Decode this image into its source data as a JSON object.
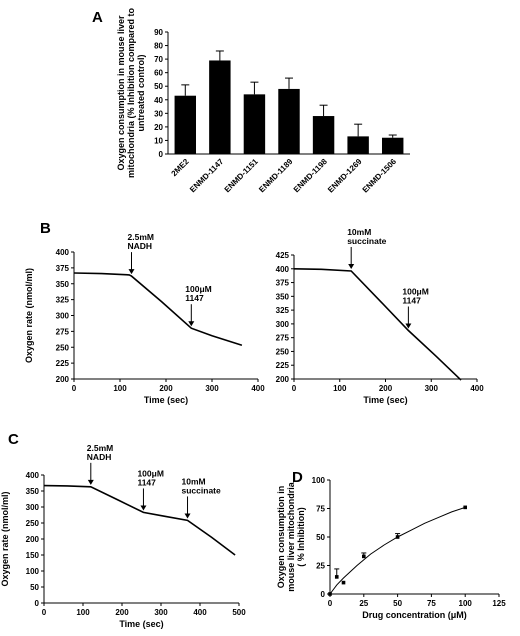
{
  "chart_data": [
    {
      "panel": "A",
      "type": "bar",
      "ylabel": "Oxygen consumption in mouse liver mitochondria (% Inhibition compared to untreated control)",
      "ylabel_lines": [
        "Oxygen consumption in mouse liver",
        "mitochondria (% Inhibition compared to",
        "untreated control)"
      ],
      "xlabel": "",
      "categories": [
        "2ME2",
        "ENMD-1147",
        "ENMD-1151",
        "ENMD-1189",
        "ENMD-1198",
        "ENMD-1269",
        "ENMD-1506"
      ],
      "values": [
        43,
        69,
        44,
        48,
        28,
        13,
        12
      ],
      "errors": [
        8,
        7,
        9,
        8,
        8,
        9,
        2
      ],
      "ylim": [
        0,
        90
      ],
      "yticks": [
        "0",
        "10",
        "20",
        "30",
        "40",
        "50",
        "60",
        "70",
        "80",
        "90"
      ],
      "grid": false,
      "color": "#000000"
    },
    {
      "panel": "B",
      "type": "line",
      "ylabel": "Oxygen rate (nmol/ml)",
      "xlabel": "Time (sec)",
      "xlim": [
        0,
        400
      ],
      "ylim": [
        200,
        400
      ],
      "xticks": [
        "0",
        "100",
        "200",
        "300",
        "400"
      ],
      "yticks": [
        "200",
        "225",
        "250",
        "275",
        "300",
        "325",
        "350",
        "375",
        "400"
      ],
      "x": [
        0,
        60,
        120,
        125,
        190,
        255,
        300,
        365
      ],
      "y": [
        367,
        366,
        364,
        362,
        322,
        280,
        268,
        253
      ],
      "annotations": [
        {
          "lines": [
            "2.5mM",
            "NADH"
          ],
          "x": 125,
          "y": 362
        },
        {
          "lines": [
            "100μM",
            "1147"
          ],
          "x": 255,
          "y": 280
        }
      ],
      "grid": false
    },
    {
      "panel": "B",
      "type": "line",
      "ylabel": "",
      "xlabel": "Time (sec)",
      "xlim": [
        0,
        400
      ],
      "ylim": [
        200,
        425
      ],
      "xticks": [
        "0",
        "100",
        "200",
        "300",
        "400"
      ],
      "yticks": [
        "200",
        "225",
        "250",
        "275",
        "300",
        "325",
        "350",
        "375",
        "400",
        "425"
      ],
      "x": [
        0,
        60,
        125,
        190,
        250,
        310,
        365
      ],
      "y": [
        400,
        399,
        396,
        340,
        288,
        242,
        198
      ],
      "annotations": [
        {
          "lines": [
            "10mM",
            "succinate"
          ],
          "x": 125,
          "y": 396
        },
        {
          "lines": [
            "100μM",
            "1147"
          ],
          "x": 250,
          "y": 288
        }
      ],
      "grid": false
    },
    {
      "panel": "C",
      "type": "line",
      "ylabel": "Oxygen rate (nmol/ml)",
      "xlabel": "Time (sec)",
      "xlim": [
        0,
        500
      ],
      "ylim": [
        0,
        400
      ],
      "xticks": [
        "0",
        "100",
        "200",
        "300",
        "400",
        "500"
      ],
      "yticks": [
        "0",
        "50",
        "100",
        "150",
        "200",
        "250",
        "300",
        "350",
        "400"
      ],
      "x": [
        0,
        60,
        120,
        190,
        255,
        310,
        368,
        430,
        490
      ],
      "y": [
        367,
        366,
        363,
        322,
        283,
        271,
        258,
        205,
        150
      ],
      "annotations": [
        {
          "lines": [
            "2.5mM",
            "NADH"
          ],
          "x": 120,
          "y": 363
        },
        {
          "lines": [
            "100μM",
            "1147"
          ],
          "x": 255,
          "y": 283
        },
        {
          "lines": [
            "10mM",
            "succinate"
          ],
          "x": 368,
          "y": 258
        }
      ],
      "grid": false
    },
    {
      "panel": "D",
      "type": "scatter",
      "ylabel": "Oxygen consumption in mouse liver mitochondria ( % Inhibition)",
      "ylabel_lines": [
        "Oxygen consumption in",
        "mouse liver mitochondria",
        "( % Inhibition)"
      ],
      "xlabel": "Drug concentration (μM)",
      "xlim": [
        0,
        125
      ],
      "ylim": [
        0,
        100
      ],
      "xticks": [
        "0",
        "25",
        "50",
        "75",
        "100",
        "125"
      ],
      "yticks": [
        "0",
        "25",
        "50",
        "75",
        "100"
      ],
      "points": [
        {
          "x": 0,
          "y": 0,
          "err": 0
        },
        {
          "x": 5,
          "y": 15,
          "err": 7
        },
        {
          "x": 10,
          "y": 10,
          "err": 0
        },
        {
          "x": 25,
          "y": 33,
          "err": 3
        },
        {
          "x": 50,
          "y": 50,
          "err": 3
        },
        {
          "x": 100,
          "y": 76,
          "err": 0
        }
      ],
      "fit": {
        "x": [
          0,
          5,
          10,
          20,
          30,
          40,
          50,
          60,
          70,
          80,
          90,
          100
        ],
        "y": [
          0,
          8,
          14,
          25,
          35,
          43,
          50,
          56,
          62,
          67,
          72,
          76
        ]
      },
      "grid": false
    }
  ],
  "labels": {
    "A": "A",
    "B": "B",
    "C": "C",
    "D": "D"
  }
}
